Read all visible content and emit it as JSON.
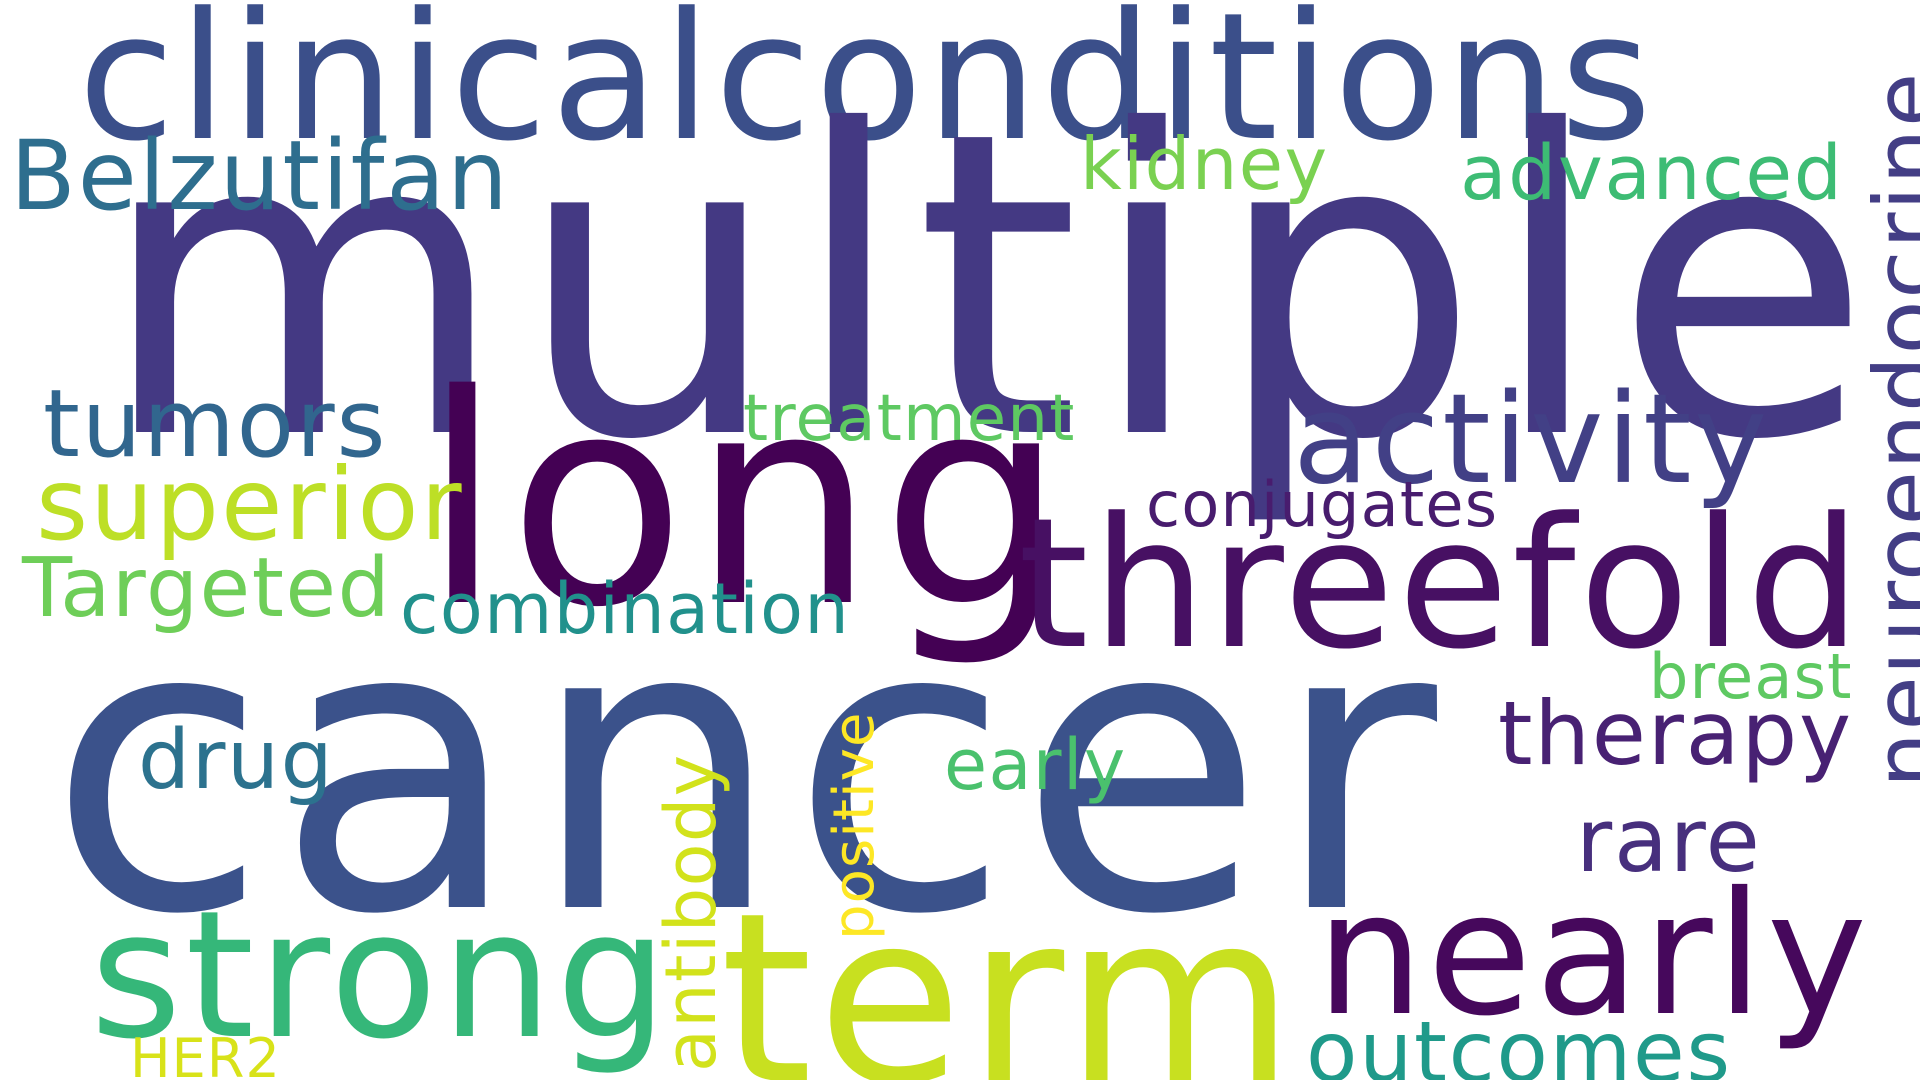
{
  "words": {
    "clinicalconditions": {
      "text": "clinicalconditions",
      "color": "#3b4f8a"
    },
    "multiple": {
      "text": "multiple",
      "color": "#443983"
    },
    "belzutifan": {
      "text": "Belzutifan",
      "color": "#2e6e8e"
    },
    "kidney": {
      "text": "kidney",
      "color": "#7ad151"
    },
    "advanced": {
      "text": "advanced",
      "color": "#3dbc74"
    },
    "neuroendocrine": {
      "text": "neuroendocrine",
      "color": "#433e85"
    },
    "tumors": {
      "text": "tumors",
      "color": "#31668e"
    },
    "treatment": {
      "text": "treatment",
      "color": "#5ec962"
    },
    "long": {
      "text": "long",
      "color": "#440154"
    },
    "activity": {
      "text": "activity",
      "color": "#424086"
    },
    "superior": {
      "text": "superior",
      "color": "#bddf26"
    },
    "conjugates": {
      "text": "conjugates",
      "color": "#481c6e"
    },
    "threefold": {
      "text": "threefold",
      "color": "#471063"
    },
    "targeted": {
      "text": "Targeted",
      "color": "#6ece58"
    },
    "combination": {
      "text": "combination",
      "color": "#21918c"
    },
    "cancer": {
      "text": "cancer",
      "color": "#3b528b"
    },
    "breast": {
      "text": "breast",
      "color": "#5ec962"
    },
    "positive": {
      "text": "positive",
      "color": "#fde725"
    },
    "therapy": {
      "text": "therapy",
      "color": "#482173"
    },
    "drug": {
      "text": "drug",
      "color": "#2c728e"
    },
    "early": {
      "text": "early",
      "color": "#4ac16d"
    },
    "antibody": {
      "text": "antibody",
      "color": "#d2e21b"
    },
    "rare": {
      "text": "rare",
      "color": "#472f7d"
    },
    "strong": {
      "text": "strong",
      "color": "#35b779"
    },
    "term": {
      "text": "term",
      "color": "#c8e020"
    },
    "nearly": {
      "text": "nearly",
      "color": "#46085c"
    },
    "her2": {
      "text": "HER2",
      "color": "#d8e219"
    },
    "outcomes": {
      "text": "outcomes",
      "color": "#1f9a8a"
    }
  }
}
